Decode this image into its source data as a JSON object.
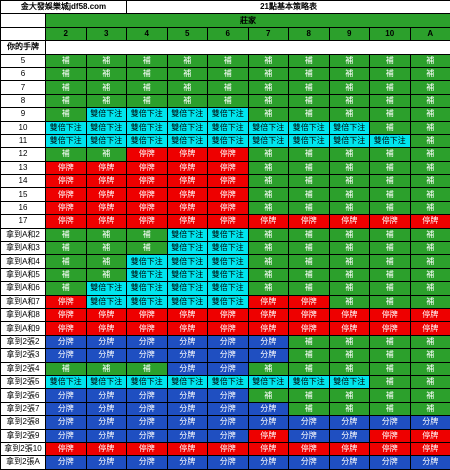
{
  "header": {
    "site": "金大發娛樂城jdf58.com",
    "title": "21點基本策略表"
  },
  "dealer": {
    "label": "莊家",
    "upcards": [
      "2",
      "3",
      "4",
      "5",
      "6",
      "7",
      "8",
      "9",
      "10",
      "A"
    ]
  },
  "hands_header": "你的手牌",
  "actions": {
    "H": "補",
    "D": "雙倍下注",
    "S": "停牌",
    "P": "分牌"
  },
  "colors": {
    "hit": "#2ca02c",
    "double": "#00e5ee",
    "stand": "#ee0000",
    "split": "#1f4fc1"
  },
  "rows": [
    {
      "hand": "5",
      "cells": [
        "H",
        "H",
        "H",
        "H",
        "H",
        "H",
        "H",
        "H",
        "H",
        "H"
      ]
    },
    {
      "hand": "6",
      "cells": [
        "H",
        "H",
        "H",
        "H",
        "H",
        "H",
        "H",
        "H",
        "H",
        "H"
      ]
    },
    {
      "hand": "7",
      "cells": [
        "H",
        "H",
        "H",
        "H",
        "H",
        "H",
        "H",
        "H",
        "H",
        "H"
      ]
    },
    {
      "hand": "8",
      "cells": [
        "H",
        "H",
        "H",
        "H",
        "H",
        "H",
        "H",
        "H",
        "H",
        "H"
      ]
    },
    {
      "hand": "9",
      "cells": [
        "H",
        "D",
        "D",
        "D",
        "D",
        "H",
        "H",
        "H",
        "H",
        "H"
      ]
    },
    {
      "hand": "10",
      "cells": [
        "D",
        "D",
        "D",
        "D",
        "D",
        "D",
        "D",
        "D",
        "H",
        "H"
      ]
    },
    {
      "hand": "11",
      "cells": [
        "D",
        "D",
        "D",
        "D",
        "D",
        "D",
        "D",
        "D",
        "D",
        "H"
      ]
    },
    {
      "hand": "12",
      "cells": [
        "H",
        "H",
        "S",
        "S",
        "S",
        "H",
        "H",
        "H",
        "H",
        "H"
      ]
    },
    {
      "hand": "13",
      "cells": [
        "S",
        "S",
        "S",
        "S",
        "S",
        "H",
        "H",
        "H",
        "H",
        "H"
      ]
    },
    {
      "hand": "14",
      "cells": [
        "S",
        "S",
        "S",
        "S",
        "S",
        "H",
        "H",
        "H",
        "H",
        "H"
      ]
    },
    {
      "hand": "15",
      "cells": [
        "S",
        "S",
        "S",
        "S",
        "S",
        "H",
        "H",
        "H",
        "H",
        "H"
      ]
    },
    {
      "hand": "16",
      "cells": [
        "S",
        "S",
        "S",
        "S",
        "S",
        "H",
        "H",
        "H",
        "H",
        "H"
      ]
    },
    {
      "hand": "17",
      "cells": [
        "S",
        "S",
        "S",
        "S",
        "S",
        "S",
        "S",
        "S",
        "S",
        "S"
      ]
    },
    {
      "hand": "拿到A和2",
      "cells": [
        "H",
        "H",
        "H",
        "D",
        "D",
        "H",
        "H",
        "H",
        "H",
        "H"
      ]
    },
    {
      "hand": "拿到A和3",
      "cells": [
        "H",
        "H",
        "H",
        "D",
        "D",
        "H",
        "H",
        "H",
        "H",
        "H"
      ]
    },
    {
      "hand": "拿到A和4",
      "cells": [
        "H",
        "H",
        "D",
        "D",
        "D",
        "H",
        "H",
        "H",
        "H",
        "H"
      ]
    },
    {
      "hand": "拿到A和5",
      "cells": [
        "H",
        "H",
        "D",
        "D",
        "D",
        "H",
        "H",
        "H",
        "H",
        "H"
      ]
    },
    {
      "hand": "拿到A和6",
      "cells": [
        "H",
        "D",
        "D",
        "D",
        "D",
        "H",
        "H",
        "H",
        "H",
        "H"
      ]
    },
    {
      "hand": "拿到A和7",
      "cells": [
        "S",
        "D",
        "D",
        "D",
        "D",
        "S",
        "S",
        "H",
        "H",
        "H"
      ]
    },
    {
      "hand": "拿到A和8",
      "cells": [
        "S",
        "S",
        "S",
        "S",
        "S",
        "S",
        "S",
        "S",
        "S",
        "S"
      ]
    },
    {
      "hand": "拿到A和9",
      "cells": [
        "S",
        "S",
        "S",
        "S",
        "S",
        "S",
        "S",
        "S",
        "S",
        "S"
      ]
    },
    {
      "hand": "拿到2張2",
      "cells": [
        "P",
        "P",
        "P",
        "P",
        "P",
        "P",
        "H",
        "H",
        "H",
        "H"
      ]
    },
    {
      "hand": "拿到2張3",
      "cells": [
        "P",
        "P",
        "P",
        "P",
        "P",
        "P",
        "H",
        "H",
        "H",
        "H"
      ]
    },
    {
      "hand": "拿到2張4",
      "cells": [
        "H",
        "H",
        "H",
        "P",
        "P",
        "H",
        "H",
        "H",
        "H",
        "H"
      ]
    },
    {
      "hand": "拿到2張5",
      "cells": [
        "D",
        "D",
        "D",
        "D",
        "D",
        "D",
        "D",
        "D",
        "H",
        "H"
      ]
    },
    {
      "hand": "拿到2張6",
      "cells": [
        "P",
        "P",
        "P",
        "P",
        "P",
        "H",
        "H",
        "H",
        "H",
        "H"
      ]
    },
    {
      "hand": "拿到2張7",
      "cells": [
        "P",
        "P",
        "P",
        "P",
        "P",
        "P",
        "H",
        "H",
        "H",
        "H"
      ]
    },
    {
      "hand": "拿到2張8",
      "cells": [
        "P",
        "P",
        "P",
        "P",
        "P",
        "P",
        "P",
        "P",
        "P",
        "P"
      ]
    },
    {
      "hand": "拿到2張9",
      "cells": [
        "P",
        "P",
        "P",
        "P",
        "P",
        "S",
        "P",
        "P",
        "S",
        "S"
      ]
    },
    {
      "hand": "拿到2張10",
      "cells": [
        "S",
        "S",
        "S",
        "S",
        "S",
        "S",
        "S",
        "S",
        "S",
        "S"
      ]
    },
    {
      "hand": "拿到2張A",
      "cells": [
        "P",
        "P",
        "P",
        "P",
        "P",
        "P",
        "P",
        "P",
        "P",
        "P"
      ]
    }
  ]
}
